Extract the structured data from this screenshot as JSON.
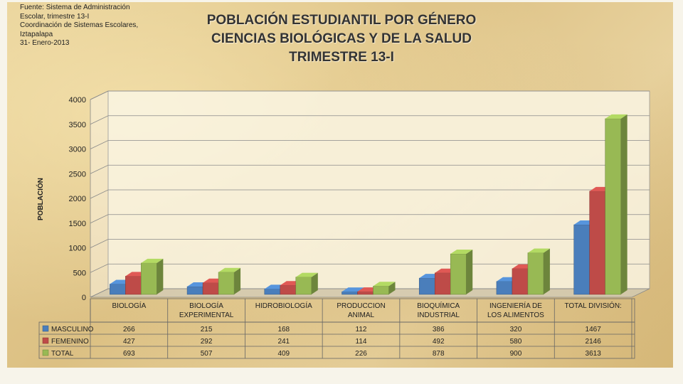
{
  "source": {
    "lines": [
      "Fuente: Sistema de Administración",
      "Escolar, trimestre 13-I",
      "Coordinación de Sistemas Escolares,",
      "Iztapalapa",
      "31- Enero-2013"
    ]
  },
  "chart_data": {
    "type": "bar",
    "title_lines": [
      "POBLACIÓN ESTUDIANTIL POR GÉNERO",
      "CIENCIAS BIOLÓGICAS Y DE LA SALUD",
      "TRIMESTRE 13-I"
    ],
    "xlabel": "",
    "ylabel": "POBLACIÓN",
    "ylim": [
      0,
      4000
    ],
    "yticks": [
      0,
      500,
      1000,
      1500,
      2000,
      2500,
      3000,
      3500,
      4000
    ],
    "grid": true,
    "legend": "data-table",
    "categories": [
      [
        "BIOLOGÍA"
      ],
      [
        "BIOLOGÍA",
        "EXPERIMENTAL"
      ],
      [
        "HIDROBIOLOGÍA"
      ],
      [
        "PRODUCCION",
        "ANIMAL"
      ],
      [
        "BIOQUÍMICA",
        "INDUSTRIAL"
      ],
      [
        "INGENIERÍA DE",
        "LOS ALIMENTOS"
      ],
      [
        "TOTAL DIVISIÓN:"
      ]
    ],
    "series": [
      {
        "name": "MASCULINO",
        "color": "#4a7ebb",
        "values": [
          266,
          215,
          168,
          112,
          386,
          320,
          1467
        ]
      },
      {
        "name": "FEMENINO",
        "color": "#be4b48",
        "values": [
          427,
          292,
          241,
          114,
          492,
          580,
          2146
        ]
      },
      {
        "name": "TOTAL",
        "color": "#98b954",
        "values": [
          693,
          507,
          409,
          226,
          878,
          900,
          3613
        ]
      }
    ]
  }
}
